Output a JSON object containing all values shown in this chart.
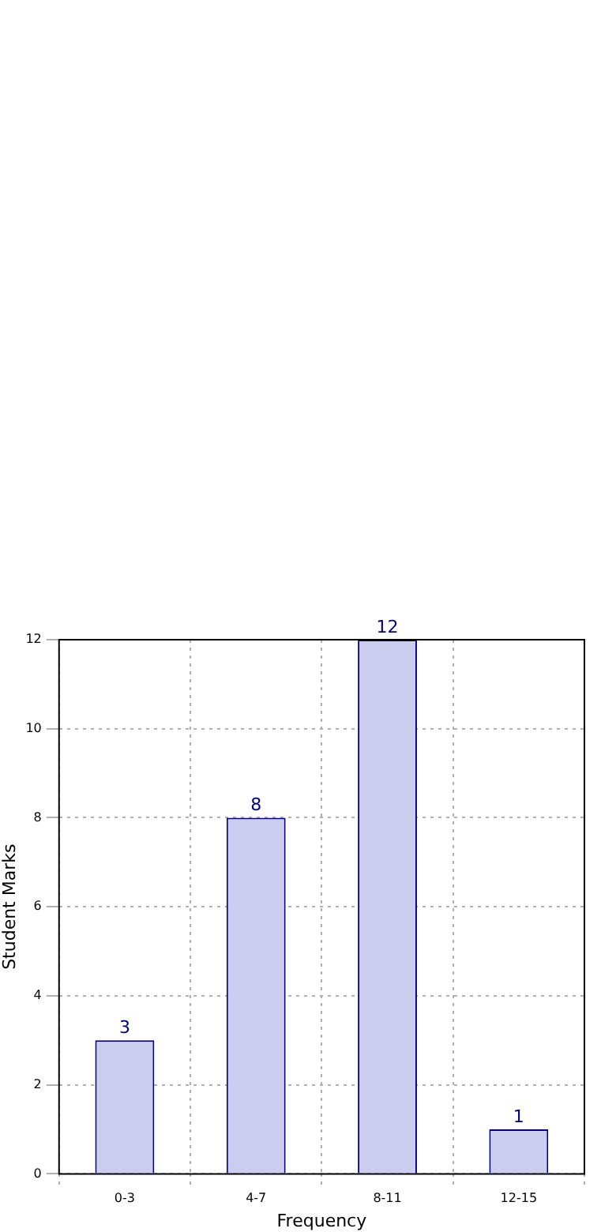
{
  "chart_data": {
    "type": "bar",
    "xlabel": "Frequency",
    "ylabel": "Student Marks",
    "categories": [
      "0-3",
      "4-7",
      "8-11",
      "12-15"
    ],
    "values": [
      3,
      8,
      12,
      1
    ],
    "color": "#ccccee",
    "ylim": [
      0,
      12
    ],
    "yticks": [
      0,
      2,
      4,
      6,
      8,
      10,
      12
    ],
    "grid": true,
    "data_labels": true
  }
}
